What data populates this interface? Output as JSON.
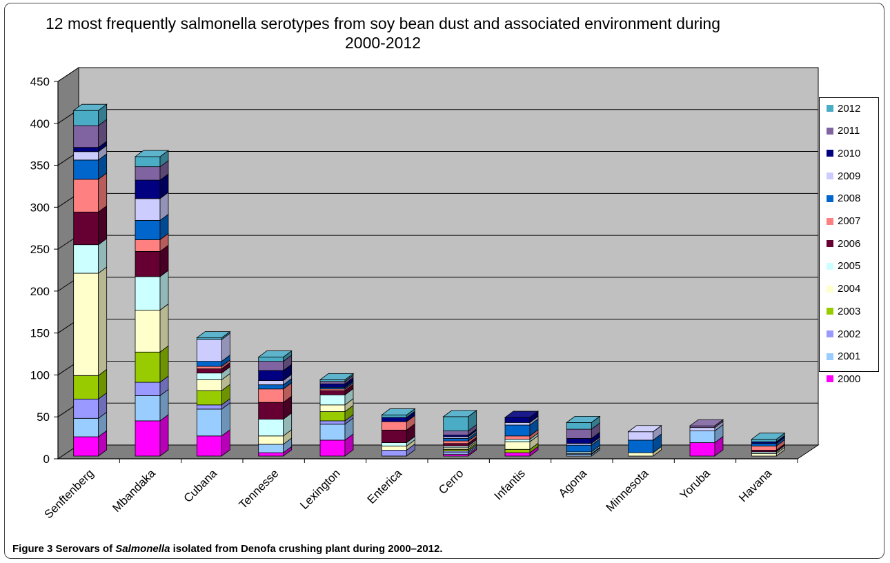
{
  "chart_data": {
    "type": "bar",
    "stacked": true,
    "three_d": true,
    "title": "12 most frequently salmonella serotypes from soy bean dust and associated environment during 2000-2012",
    "ylim": [
      0,
      450
    ],
    "yticks": [
      0,
      50,
      100,
      150,
      200,
      250,
      300,
      350,
      400,
      450
    ],
    "grid": true,
    "legend_position": "right",
    "categories": [
      "Senftenberg",
      "Mbandaka",
      "Cubana",
      "Tennesse",
      "Lexington",
      "Enterica",
      "Cerro",
      "Infantis",
      "Agona",
      "Minnesota",
      "Yoruba",
      "Havana"
    ],
    "series": [
      {
        "name": "2000",
        "color": "#ff00ff",
        "values": [
          23,
          42,
          24,
          4,
          19,
          0,
          2,
          4,
          0,
          0,
          16,
          0
        ]
      },
      {
        "name": "2001",
        "color": "#99ccff",
        "values": [
          22,
          30,
          32,
          10,
          19,
          0,
          2,
          0,
          2,
          0,
          14,
          0
        ]
      },
      {
        "name": "2002",
        "color": "#9999ff",
        "values": [
          23,
          16,
          5,
          0,
          4,
          7,
          2,
          0,
          1,
          0,
          0,
          0
        ]
      },
      {
        "name": "2003",
        "color": "#99cc00",
        "values": [
          28,
          36,
          17,
          0,
          11,
          0,
          2,
          4,
          0,
          0,
          0,
          0
        ]
      },
      {
        "name": "2004",
        "color": "#ffffcc",
        "values": [
          122,
          50,
          13,
          10,
          8,
          5,
          2,
          9,
          0,
          4,
          0,
          3
        ]
      },
      {
        "name": "2005",
        "color": "#ccffff",
        "values": [
          34,
          40,
          8,
          20,
          12,
          4,
          2,
          3,
          2,
          0,
          0,
          2
        ]
      },
      {
        "name": "2006",
        "color": "#660033",
        "values": [
          39,
          30,
          5,
          20,
          5,
          15,
          3,
          0,
          0,
          0,
          0,
          2
        ]
      },
      {
        "name": "2007",
        "color": "#ff8080",
        "values": [
          39,
          14,
          3,
          16,
          2,
          10,
          3,
          4,
          0,
          0,
          0,
          5
        ]
      },
      {
        "name": "2008",
        "color": "#0066cc",
        "values": [
          23,
          23,
          6,
          5,
          2,
          0,
          3,
          13,
          8,
          15,
          0,
          3
        ]
      },
      {
        "name": "2009",
        "color": "#ccccff",
        "values": [
          10,
          26,
          26,
          5,
          0,
          0,
          2,
          3,
          2,
          10,
          4,
          0
        ]
      },
      {
        "name": "2010",
        "color": "#000080",
        "values": [
          5,
          22,
          0,
          12,
          4,
          5,
          2,
          6,
          6,
          0,
          0,
          2
        ]
      },
      {
        "name": "2011",
        "color": "#8064a2",
        "values": [
          26,
          16,
          0,
          11,
          3,
          0,
          5,
          0,
          11,
          0,
          2,
          0
        ]
      },
      {
        "name": "2012",
        "color": "#4bacc6",
        "values": [
          18,
          12,
          2,
          5,
          2,
          3,
          17,
          0,
          8,
          0,
          0,
          3
        ]
      }
    ]
  },
  "caption": {
    "label": "Figure 3",
    "text_before": " Serovars of ",
    "italic": "Salmonella",
    "text_after": " isolated from Denofa crushing plant during 2000–2012."
  }
}
